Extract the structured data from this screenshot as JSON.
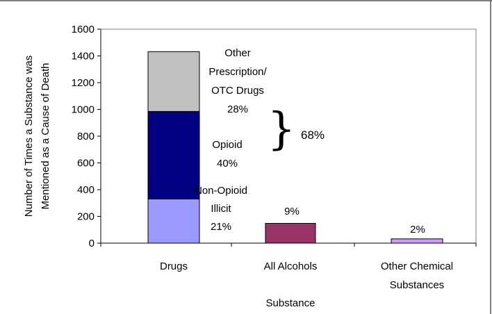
{
  "chart_data": {
    "type": "bar",
    "stacked": true,
    "title": "",
    "xlabel": "Substance",
    "ylabel_lines": [
      "Number of Times a Substance was",
      "Mentioned as a Cause of Death"
    ],
    "ylim": [
      0,
      1600
    ],
    "yticks": [
      0,
      200,
      400,
      600,
      800,
      1000,
      1200,
      1400,
      1600
    ],
    "grid": false,
    "categories": [
      {
        "key": "drugs",
        "lines": [
          "Drugs"
        ]
      },
      {
        "key": "alcohols",
        "lines": [
          "All Alcohols"
        ]
      },
      {
        "key": "other",
        "lines": [
          "Other Chemical",
          "Substances"
        ]
      }
    ],
    "series": [
      {
        "key": "non-opioid",
        "color": "#9999ff",
        "values": [
          330,
          null,
          null
        ],
        "label_lines": [
          "Non-Opioid",
          "Illicit",
          "21%"
        ]
      },
      {
        "key": "opioid",
        "color": "#000080",
        "values": [
          655,
          null,
          null
        ],
        "label_lines": [
          "Opioid",
          "40%"
        ]
      },
      {
        "key": "other-rx",
        "color": "#c0c0c0",
        "values": [
          447,
          null,
          null
        ],
        "label_lines": [
          "Other",
          "Prescription/",
          "OTC Drugs",
          "28%"
        ]
      },
      {
        "key": "alcohols",
        "color": "#993366",
        "values": [
          null,
          148,
          null
        ],
        "label_lines": [
          "9%"
        ]
      },
      {
        "key": "other-chemical",
        "color": "#cc99ff",
        "values": [
          null,
          null,
          32
        ],
        "label_lines": [
          "2%"
        ]
      }
    ],
    "annotations": [
      {
        "key": "bracket-total",
        "text": "68%",
        "symbol": "}"
      }
    ]
  }
}
